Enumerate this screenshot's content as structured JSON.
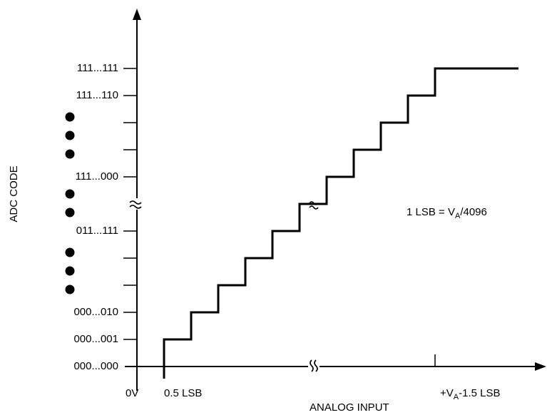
{
  "axes": {
    "y_label": "ADC CODE",
    "x_label": "ANALOG INPUT",
    "y_codes": [
      "111...111",
      "111...110",
      "111...000",
      "011...111",
      "000...010",
      "000...001",
      "000...000"
    ],
    "x_labels": {
      "origin": "0V",
      "first": "0.5 LSB",
      "last_prefix": "+V",
      "last_sub": "A",
      "last_suffix": "-1.5 LSB"
    }
  },
  "annotation": {
    "prefix": "1 LSB = V",
    "sub": "A",
    "suffix": "/4096"
  },
  "symbols": {
    "axis_break": "double-wave",
    "ellipsis_dot": "filled-circle"
  }
}
